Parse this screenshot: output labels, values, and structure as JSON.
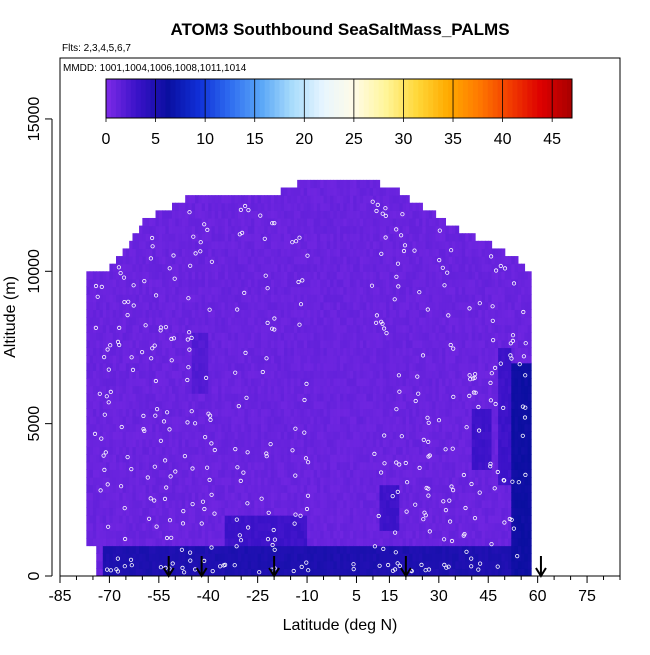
{
  "chart_data": {
    "type": "heatmap",
    "title": "ATOM3 Southbound SeaSaltMass_PALMS",
    "flights_note": "Flts: 2,3,4,5,6,7",
    "dates_note": "MMDD: 1001,1004,1006,1008,1011,1014",
    "xlabel": "Latitude (deg N)",
    "ylabel": "Altitude (m)",
    "xlim": [
      -85,
      85
    ],
    "ylim": [
      0,
      17000
    ],
    "x_ticks_major": [
      -85,
      -70,
      -55,
      -40,
      -25,
      -10,
      5,
      15,
      30,
      45,
      60,
      75
    ],
    "y_ticks": [
      0,
      5000,
      10000,
      15000
    ],
    "colorbar": {
      "range": [
        0,
        47
      ],
      "ticks": [
        0,
        5,
        10,
        15,
        20,
        25,
        30,
        35,
        40,
        45
      ],
      "colors": [
        "#7f2be8",
        "#3a12c8",
        "#0a0fa0",
        "#1030d8",
        "#2f6df0",
        "#5aa7f7",
        "#a9dcfb",
        "#e8f6ff",
        "#fffbe6",
        "#fff59a",
        "#ffd83a",
        "#ffab00",
        "#ff7a00",
        "#f23c00",
        "#dd0000",
        "#a80000"
      ]
    },
    "grid": false,
    "arrows_latitude": [
      -52,
      -42,
      -20,
      20,
      61
    ],
    "profile_extent": [
      {
        "lat": -77,
        "top": 9900
      },
      {
        "lat": -70,
        "top": 10000
      },
      {
        "lat": -65,
        "top": 10600
      },
      {
        "lat": -60,
        "top": 11500
      },
      {
        "lat": -53,
        "top": 11900
      },
      {
        "lat": -45,
        "top": 12400
      },
      {
        "lat": -35,
        "top": 12400
      },
      {
        "lat": -20,
        "top": 12400
      },
      {
        "lat": -10,
        "top": 12900
      },
      {
        "lat": 5,
        "top": 12900
      },
      {
        "lat": 15,
        "top": 12700
      },
      {
        "lat": 25,
        "top": 12000
      },
      {
        "lat": 35,
        "top": 11300
      },
      {
        "lat": 45,
        "top": 10800
      },
      {
        "lat": 55,
        "top": 10200
      },
      {
        "lat": 58,
        "top": 9800
      }
    ],
    "background_value": 1,
    "enhanced_regions": [
      {
        "lat_range": [
          -72,
          56
        ],
        "alt_range": [
          0,
          1000
        ],
        "value": 5
      },
      {
        "lat_range": [
          52,
          58
        ],
        "alt_range": [
          0,
          7000
        ],
        "value": 6
      },
      {
        "lat_range": [
          48,
          52
        ],
        "alt_range": [
          3000,
          7500
        ],
        "value": 3
      },
      {
        "lat_range": [
          40,
          46
        ],
        "alt_range": [
          3500,
          5500
        ],
        "value": 3
      },
      {
        "lat_range": [
          12,
          18
        ],
        "alt_range": [
          1500,
          3000
        ],
        "value": 3
      },
      {
        "lat_range": [
          -35,
          -10
        ],
        "alt_range": [
          800,
          2000
        ],
        "value": 3
      },
      {
        "lat_range": [
          -45,
          -40
        ],
        "alt_range": [
          6000,
          8000
        ],
        "value": 2
      },
      {
        "lat_range": [
          -65,
          -50
        ],
        "alt_range": [
          500,
          1000
        ],
        "value": 4
      }
    ]
  }
}
